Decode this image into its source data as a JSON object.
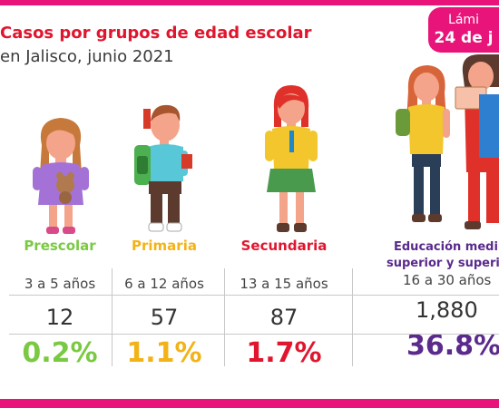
{
  "header": {
    "title": "Casos por grupos de edad escolar",
    "subtitle": "en Jalisco, junio 2021"
  },
  "badge": {
    "line1": "Lámi",
    "line2": "24 de j"
  },
  "groups": [
    {
      "label": "Prescolar",
      "range": "3 a 5 años",
      "count": "12",
      "percent": "0.2%",
      "color": "#7ac943",
      "icon": "preschool-girl-with-teddy-icon"
    },
    {
      "label": "Primaria",
      "range": "6 a 12 años",
      "count": "57",
      "percent": "1.1%",
      "color": "#f2b318",
      "icon": "schoolboy-with-backpack-icon"
    },
    {
      "label": "Secundaria",
      "range": "13 a 15 años",
      "count": "87",
      "percent": "1.7%",
      "color": "#e0162e",
      "icon": "secondary-schoolgirl-icon"
    },
    {
      "label_line1": "Educación medi",
      "label_line2": "superior y superi",
      "range": "16 a 30 años",
      "count": "1,880",
      "percent": "36.8%",
      "color": "#5a2a8c",
      "icon": "university-students-icon"
    }
  ],
  "colors": {
    "accent": "#e8147a",
    "title": "#e0162e"
  }
}
